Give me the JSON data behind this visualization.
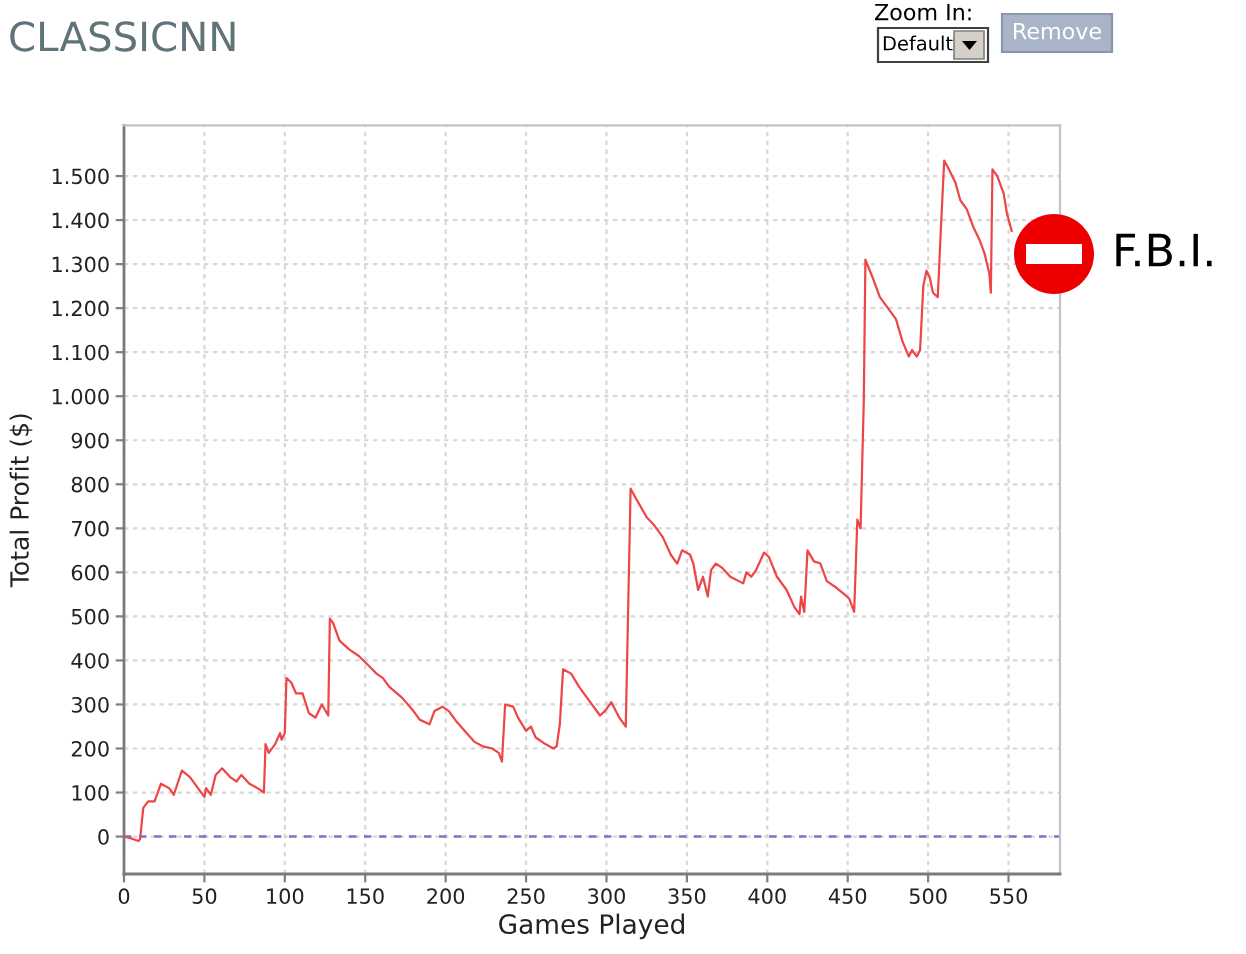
{
  "chart_data": {
    "type": "line",
    "title": "CLASSICNN",
    "xlabel": "Games Played",
    "ylabel": "Total Profit ($)",
    "x": [
      0,
      5,
      9,
      10,
      12,
      15,
      19,
      23,
      28,
      31,
      36,
      41,
      47,
      50,
      51,
      54,
      57,
      61,
      66,
      70,
      73,
      78,
      83,
      87,
      88,
      90,
      94,
      97,
      98,
      100,
      101,
      104,
      107,
      111,
      115,
      119,
      123,
      127,
      128,
      130,
      134,
      140,
      146,
      153,
      157,
      161,
      165,
      173,
      180,
      184,
      190,
      193,
      198,
      202,
      207,
      213,
      218,
      223,
      229,
      233,
      235,
      237,
      242,
      245,
      250,
      253,
      256,
      262,
      267,
      269,
      271,
      273,
      278,
      283,
      289,
      296,
      299,
      303,
      308,
      312,
      315,
      318,
      325,
      329,
      335,
      340,
      344,
      347,
      352,
      354,
      357,
      360,
      363,
      365,
      368,
      372,
      377,
      385,
      387,
      390,
      393,
      398,
      401,
      406,
      412,
      417,
      420,
      421,
      423,
      425,
      429,
      433,
      437,
      443,
      448,
      451,
      454,
      456,
      458,
      460,
      461,
      466,
      470,
      474,
      480,
      484,
      488,
      490,
      493,
      495,
      497,
      499,
      501,
      503,
      506,
      508,
      510,
      513,
      517,
      520,
      524,
      528,
      532,
      535,
      538,
      539,
      540,
      543,
      547,
      549,
      552
    ],
    "series": [
      {
        "color": "#ee4646",
        "values": [
          0,
          -5,
          -10,
          -5,
          65,
          80,
          80,
          120,
          110,
          95,
          150,
          135,
          105,
          90,
          110,
          95,
          140,
          155,
          135,
          125,
          140,
          120,
          110,
          100,
          210,
          190,
          210,
          235,
          220,
          235,
          360,
          350,
          325,
          325,
          280,
          270,
          300,
          275,
          495,
          485,
          445,
          425,
          410,
          385,
          370,
          360,
          340,
          315,
          285,
          265,
          255,
          285,
          295,
          285,
          260,
          235,
          215,
          205,
          200,
          190,
          170,
          300,
          295,
          270,
          240,
          250,
          225,
          210,
          200,
          205,
          255,
          380,
          370,
          340,
          310,
          275,
          285,
          305,
          270,
          250,
          790,
          770,
          725,
          710,
          680,
          640,
          620,
          650,
          640,
          620,
          560,
          590,
          545,
          605,
          620,
          610,
          590,
          575,
          600,
          590,
          605,
          645,
          635,
          590,
          560,
          520,
          505,
          545,
          510,
          650,
          625,
          620,
          580,
          565,
          550,
          540,
          510,
          720,
          700,
          990,
          1310,
          1265,
          1225,
          1205,
          1175,
          1125,
          1090,
          1105,
          1090,
          1105,
          1250,
          1285,
          1270,
          1235,
          1225,
          1385,
          1535,
          1515,
          1485,
          1445,
          1425,
          1385,
          1355,
          1325,
          1280,
          1235,
          1515,
          1500,
          1460,
          1415,
          1375
        ]
      }
    ],
    "xlim": [
      0,
      582
    ],
    "ylim": [
      -85,
      1615
    ],
    "xticks": [
      0,
      50,
      100,
      150,
      200,
      250,
      300,
      350,
      400,
      450,
      500,
      550
    ],
    "yticks": [
      0,
      100,
      200,
      300,
      400,
      500,
      600,
      700,
      800,
      900,
      {
        "value": 1000,
        "label": "1.000"
      },
      {
        "value": 1100,
        "label": "1.100"
      },
      {
        "value": 1200,
        "label": "1.200"
      },
      {
        "value": 1300,
        "label": "1.300"
      },
      {
        "value": 1400,
        "label": "1.400"
      },
      {
        "value": 1500,
        "label": "1.500"
      }
    ],
    "grid": true,
    "ref_lines": [
      {
        "axis": "y",
        "value": 0,
        "color": "#7878c8",
        "line_style": "dashed"
      }
    ],
    "annotations": [
      "Zoom In:",
      "Default",
      "Remove",
      "F.B.I."
    ]
  }
}
